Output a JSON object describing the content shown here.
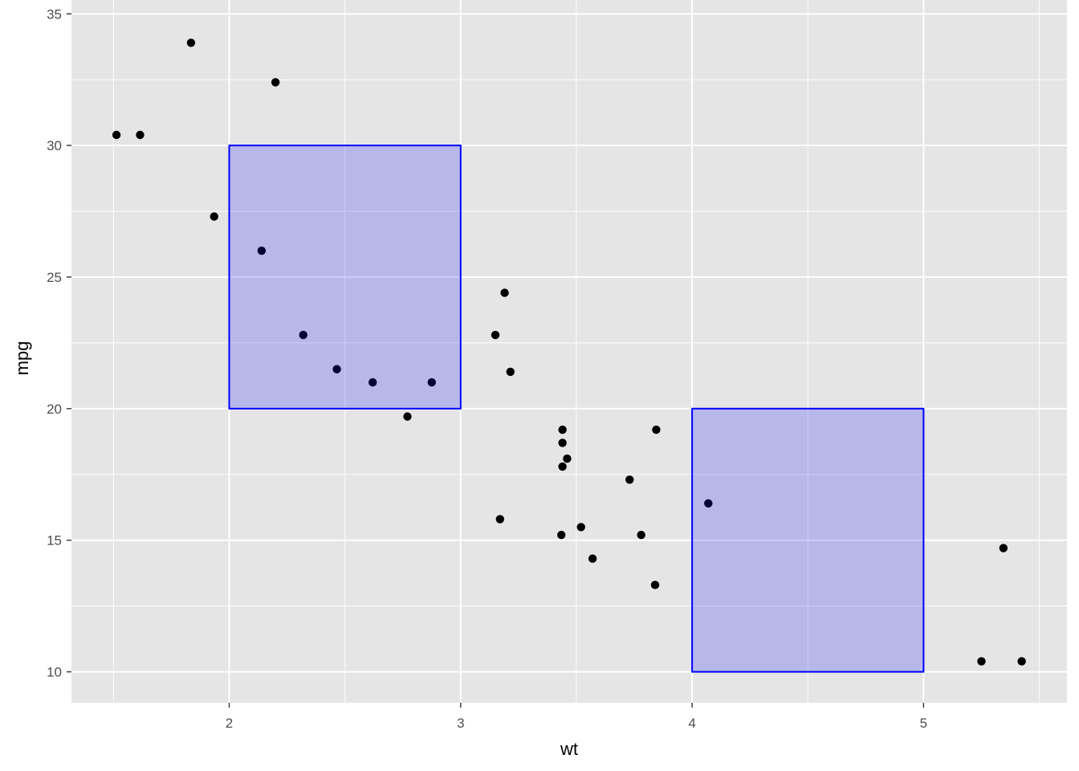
{
  "chart_data": {
    "type": "scatter",
    "title": "",
    "xlabel": "wt",
    "ylabel": "mpg",
    "xlim": [
      1.3,
      5.6
    ],
    "ylim": [
      8.9,
      35.5
    ],
    "xticks": [
      2,
      3,
      4,
      5
    ],
    "yticks": [
      10,
      15,
      20,
      25,
      30,
      35
    ],
    "xtick_labels": [
      "2",
      "3",
      "4",
      "5"
    ],
    "ytick_labels": [
      "10",
      "15",
      "20",
      "25",
      "30",
      "35"
    ],
    "grid": true,
    "legend": "none",
    "panel_background": "#e5e5e5",
    "grid_color": "#ffffff",
    "point_color": "#000000",
    "rect_fill": "#0000ff",
    "rect_fill_opacity": 0.2,
    "rect_stroke": "#0000ff",
    "points": [
      {
        "x": 2.62,
        "y": 21.0
      },
      {
        "x": 2.875,
        "y": 21.0
      },
      {
        "x": 2.32,
        "y": 22.8
      },
      {
        "x": 3.215,
        "y": 21.4
      },
      {
        "x": 3.44,
        "y": 18.7
      },
      {
        "x": 3.46,
        "y": 18.1
      },
      {
        "x": 3.57,
        "y": 14.3
      },
      {
        "x": 3.19,
        "y": 24.4
      },
      {
        "x": 3.15,
        "y": 22.8
      },
      {
        "x": 3.44,
        "y": 19.2
      },
      {
        "x": 3.44,
        "y": 17.8
      },
      {
        "x": 4.07,
        "y": 16.4
      },
      {
        "x": 3.73,
        "y": 17.3
      },
      {
        "x": 3.78,
        "y": 15.2
      },
      {
        "x": 5.25,
        "y": 10.4
      },
      {
        "x": 5.424,
        "y": 10.4
      },
      {
        "x": 5.345,
        "y": 14.7
      },
      {
        "x": 2.2,
        "y": 32.4
      },
      {
        "x": 1.615,
        "y": 30.4
      },
      {
        "x": 1.835,
        "y": 33.9
      },
      {
        "x": 2.465,
        "y": 21.5
      },
      {
        "x": 3.52,
        "y": 15.5
      },
      {
        "x": 3.435,
        "y": 15.2
      },
      {
        "x": 3.84,
        "y": 13.3
      },
      {
        "x": 3.845,
        "y": 19.2
      },
      {
        "x": 1.935,
        "y": 27.3
      },
      {
        "x": 2.14,
        "y": 26.0
      },
      {
        "x": 1.513,
        "y": 30.4
      },
      {
        "x": 3.17,
        "y": 15.8
      },
      {
        "x": 2.77,
        "y": 19.7
      }
    ],
    "rectangles": [
      {
        "xmin": 2,
        "xmax": 3,
        "ymin": 20,
        "ymax": 30
      },
      {
        "xmin": 4,
        "xmax": 5,
        "ymin": 10,
        "ymax": 20
      }
    ]
  }
}
